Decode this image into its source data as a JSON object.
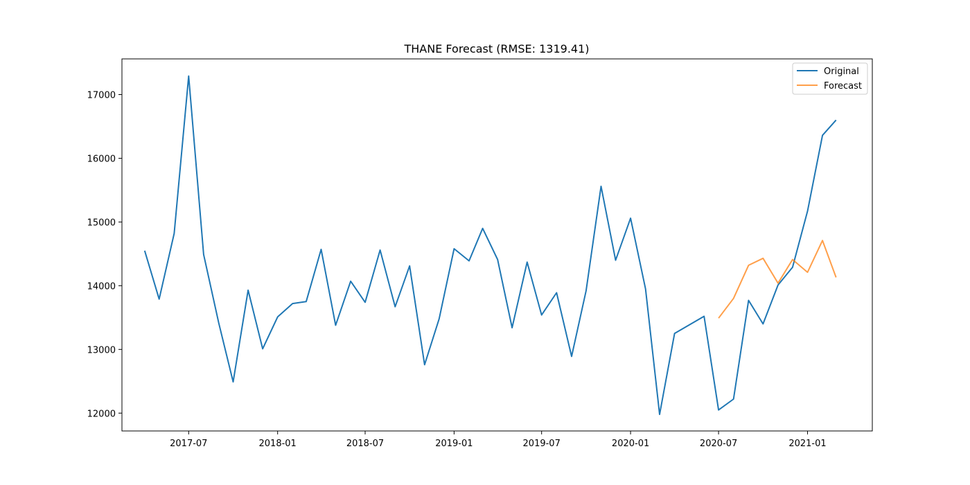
{
  "chart_data": {
    "type": "line",
    "title": "THANE Forecast (RMSE: 1319.41)",
    "xlabel": "",
    "ylabel": "",
    "x_axis": "date",
    "xlim": [
      "2017-02-13",
      "2021-05-15"
    ],
    "ylim": [
      11720,
      17560
    ],
    "x_ticks": [
      "2017-07",
      "2018-01",
      "2018-07",
      "2019-01",
      "2019-07",
      "2020-01",
      "2020-07",
      "2021-01"
    ],
    "y_ticks": [
      12000,
      13000,
      14000,
      15000,
      16000,
      17000
    ],
    "grid": false,
    "legend_position": "top-right",
    "colors": {
      "Original": "#1f77b4",
      "Forecast": "#ff7f0e"
    },
    "series": [
      {
        "name": "Original",
        "x": [
          "2017-04",
          "2017-05",
          "2017-06",
          "2017-07",
          "2017-08",
          "2017-09",
          "2017-10",
          "2017-11",
          "2017-12",
          "2018-01",
          "2018-02",
          "2018-03",
          "2018-04",
          "2018-05",
          "2018-06",
          "2018-07",
          "2018-08",
          "2018-09",
          "2018-10",
          "2018-11",
          "2018-12",
          "2019-01",
          "2019-02",
          "2019-03",
          "2019-04",
          "2019-05",
          "2019-06",
          "2019-07",
          "2019-08",
          "2019-09",
          "2019-10",
          "2019-11",
          "2019-12",
          "2020-01",
          "2020-02",
          "2020-03",
          "2020-04",
          "2020-06",
          "2020-07",
          "2020-08",
          "2020-09",
          "2020-10",
          "2020-11",
          "2020-12",
          "2021-01",
          "2021-02",
          "2021-03"
        ],
        "values": [
          14550,
          13790,
          14820,
          17290,
          14490,
          13420,
          12490,
          13930,
          13010,
          13510,
          13720,
          13750,
          14570,
          13380,
          14070,
          13740,
          14560,
          13670,
          14310,
          12760,
          13480,
          14580,
          14390,
          14900,
          14410,
          13340,
          14370,
          13540,
          13890,
          12890,
          13920,
          15560,
          14400,
          15060,
          13950,
          11980,
          13250,
          13520,
          12050,
          12220,
          13770,
          13400,
          14010,
          14290,
          15170,
          16360,
          16600
        ]
      },
      {
        "name": "Forecast",
        "x": [
          "2020-07",
          "2020-08",
          "2020-09",
          "2020-10",
          "2020-11",
          "2020-12",
          "2021-01",
          "2021-02",
          "2021-03"
        ],
        "values": [
          13490,
          13800,
          14320,
          14430,
          14040,
          14410,
          14210,
          14710,
          14130
        ]
      }
    ]
  }
}
